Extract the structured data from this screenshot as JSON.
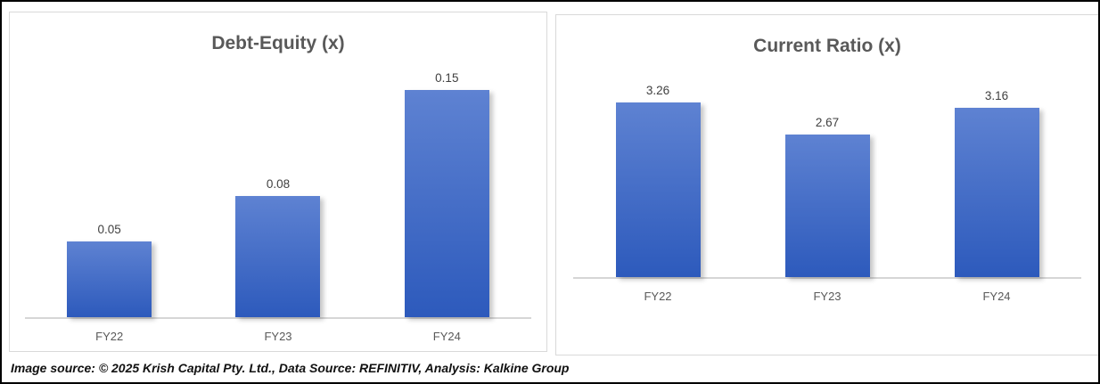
{
  "footer": {
    "text": "Image source: © 2025 Krish Capital Pty. Ltd., Data Source: REFINITIV, Analysis: Kalkine Group"
  },
  "colors": {
    "frame_border": "#000000",
    "panel_border": "#d9d9d9",
    "panel_bg": "#ffffff",
    "title_text": "#595959",
    "value_label": "#404040",
    "category_label": "#595959",
    "axis_line": "#d6d6d6",
    "bar_top": "#5e82d2",
    "bar_bottom": "#2d5abc",
    "footer_text": "#111111"
  },
  "chart_data": [
    {
      "type": "bar",
      "title": "Debt-Equity (x)",
      "categories": [
        "FY22",
        "FY23",
        "FY24"
      ],
      "values": [
        0.05,
        0.08,
        0.15
      ],
      "data_labels": [
        "0.05",
        "0.08",
        "0.15"
      ],
      "xlabel": "",
      "ylabel": "",
      "ylim": [
        0,
        0.17
      ],
      "grid": false,
      "legend": false
    },
    {
      "type": "bar",
      "title": "Current Ratio (x)",
      "categories": [
        "FY22",
        "FY23",
        "FY24"
      ],
      "values": [
        3.26,
        2.67,
        3.16
      ],
      "data_labels": [
        "3.26",
        "2.67",
        "3.16"
      ],
      "xlabel": "",
      "ylabel": "",
      "ylim": [
        0,
        4.1
      ],
      "grid": false,
      "legend": false
    }
  ]
}
